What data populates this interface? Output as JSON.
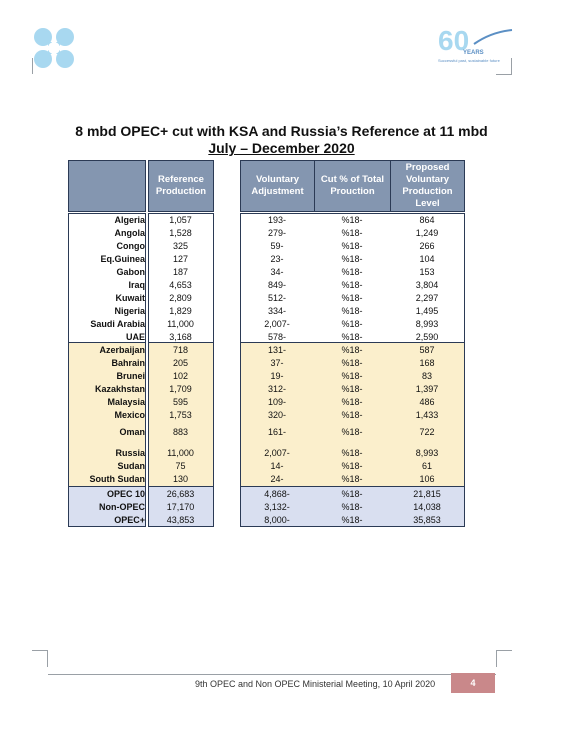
{
  "header": {
    "anniversary_number": "60",
    "anniversary_word": "YEARS",
    "anniversary_tagline": "Successful past, sustainable future"
  },
  "title": "8 mbd OPEC+ cut with KSA and Russia’s Reference at 11 mbd",
  "subtitle": "July – December 2020",
  "table": {
    "headers": {
      "reference": "Reference Production",
      "voluntary": "Voluntary Adjustment",
      "cut": "Cut % of Total Prouction",
      "proposed": "Proposed Voluntary Production Level"
    },
    "opec_rows": [
      {
        "name": "Algeria",
        "ref": "1,057",
        "vol": "193-",
        "cut": "%18-",
        "prop": "864"
      },
      {
        "name": "Angola",
        "ref": "1,528",
        "vol": "279-",
        "cut": "%18-",
        "prop": "1,249"
      },
      {
        "name": "Congo",
        "ref": "325",
        "vol": "59-",
        "cut": "%18-",
        "prop": "266"
      },
      {
        "name": "Eq.Guinea",
        "ref": "127",
        "vol": "23-",
        "cut": "%18-",
        "prop": "104"
      },
      {
        "name": "Gabon",
        "ref": "187",
        "vol": "34-",
        "cut": "%18-",
        "prop": "153"
      },
      {
        "name": "Iraq",
        "ref": "4,653",
        "vol": "849-",
        "cut": "%18-",
        "prop": "3,804"
      },
      {
        "name": "Kuwait",
        "ref": "2,809",
        "vol": "512-",
        "cut": "%18-",
        "prop": "2,297"
      },
      {
        "name": "Nigeria",
        "ref": "1,829",
        "vol": "334-",
        "cut": "%18-",
        "prop": "1,495"
      },
      {
        "name": "Saudi Arabia",
        "ref": "11,000",
        "vol": "2,007-",
        "cut": "%18-",
        "prop": "8,993"
      },
      {
        "name": "UAE",
        "ref": "3,168",
        "vol": "578-",
        "cut": "%18-",
        "prop": "2,590"
      }
    ],
    "nonopec_rows": [
      {
        "name": "Azerbaijan",
        "ref": "718",
        "vol": "131-",
        "cut": "%18-",
        "prop": "587"
      },
      {
        "name": "Bahrain",
        "ref": "205",
        "vol": "37-",
        "cut": "%18-",
        "prop": "168"
      },
      {
        "name": "Brunei",
        "ref": "102",
        "vol": "19-",
        "cut": "%18-",
        "prop": "83"
      },
      {
        "name": "Kazakhstan",
        "ref": "1,709",
        "vol": "312-",
        "cut": "%18-",
        "prop": "1,397"
      },
      {
        "name": "Malaysia",
        "ref": "595",
        "vol": "109-",
        "cut": "%18-",
        "prop": "486"
      },
      {
        "name": "Mexico",
        "ref": "1,753",
        "vol": "320-",
        "cut": "%18-",
        "prop": "1,433"
      },
      {
        "name": "Oman",
        "ref": "883",
        "vol": "161-",
        "cut": "%18-",
        "prop": "722"
      },
      {
        "name": "Russia",
        "ref": "11,000",
        "vol": "2,007-",
        "cut": "%18-",
        "prop": "8,993"
      },
      {
        "name": "Sudan",
        "ref": "75",
        "vol": "14-",
        "cut": "%18-",
        "prop": "61"
      },
      {
        "name": "South Sudan",
        "ref": "130",
        "vol": "24-",
        "cut": "%18-",
        "prop": "106"
      }
    ],
    "total_rows": [
      {
        "name": "OPEC 10",
        "ref": "26,683",
        "vol": "4,868-",
        "cut": "%18-",
        "prop": "21,815"
      },
      {
        "name": "Non-OPEC",
        "ref": "17,170",
        "vol": "3,132-",
        "cut": "%18-",
        "prop": "14,038"
      },
      {
        "name": "OPEC+",
        "ref": "43,853",
        "vol": "8,000-",
        "cut": "%18-",
        "prop": "35,853"
      }
    ]
  },
  "footer": {
    "text": "9th OPEC and Non OPEC Ministerial Meeting, 10 April 2020",
    "page_number": "4"
  },
  "colors": {
    "header_bg": "#8496b0",
    "nonopec_bg": "#fbefcc",
    "totals_bg": "#d9dff0",
    "opec_logo": "#a8d8f0",
    "page_badge": "#c9888a"
  }
}
